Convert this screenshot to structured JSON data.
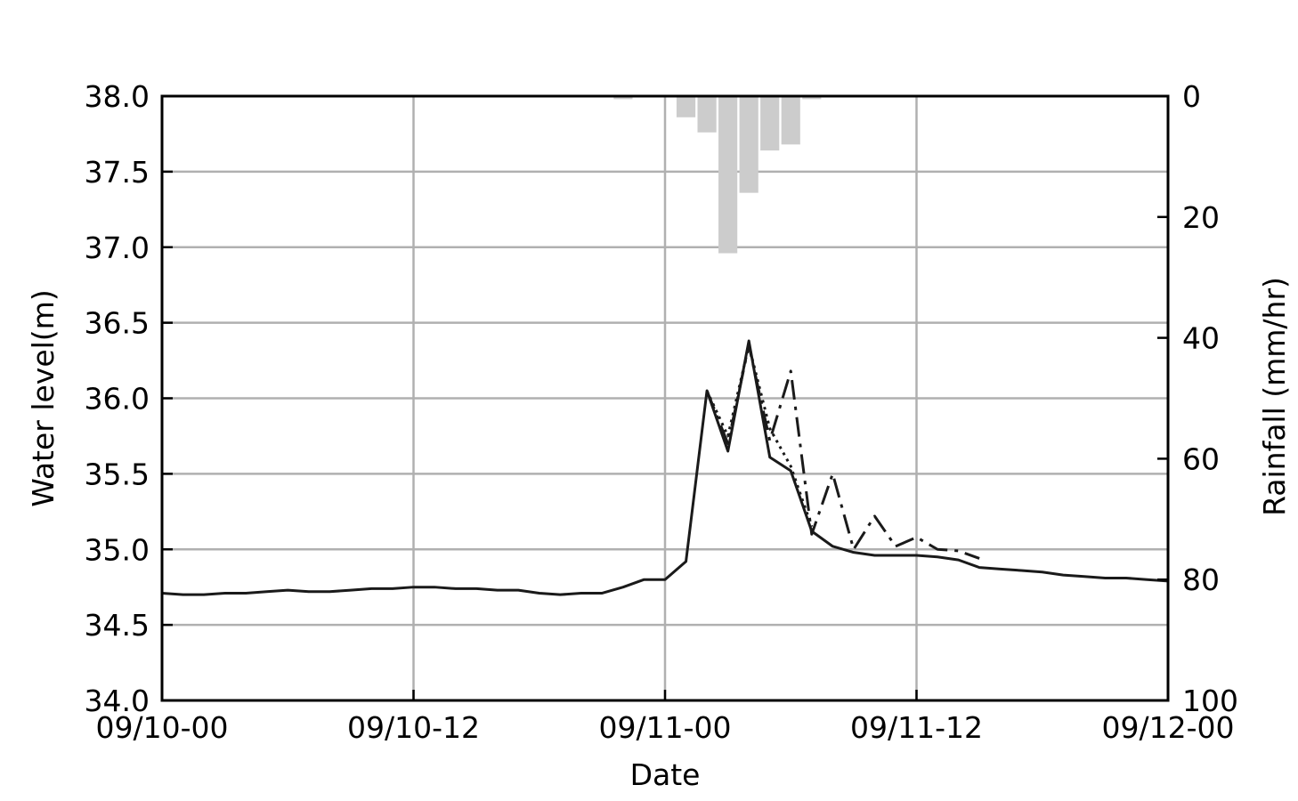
{
  "chart_data": {
    "type": "line",
    "title": "",
    "xlabel": "Date",
    "ylabel": "Water level(m)",
    "y2label": "Rainfall (mm/hr)",
    "x_unit": "hours since first tick",
    "xlim": [
      0,
      48
    ],
    "ylim": [
      34.0,
      38.0
    ],
    "y2lim": [
      0,
      100
    ],
    "y2_inverted": true,
    "grid": true,
    "x_ticks": [
      {
        "x": 0,
        "label": "09/10-00"
      },
      {
        "x": 12,
        "label": "09/10-12"
      },
      {
        "x": 24,
        "label": "09/11-00"
      },
      {
        "x": 36,
        "label": "09/11-12"
      },
      {
        "x": 48,
        "label": "09/12-00"
      }
    ],
    "y_ticks": [
      {
        "y": 34.0,
        "label": "34.0"
      },
      {
        "y": 34.5,
        "label": "34.5"
      },
      {
        "y": 35.0,
        "label": "35.0"
      },
      {
        "y": 35.5,
        "label": "35.5"
      },
      {
        "y": 36.0,
        "label": "36.0"
      },
      {
        "y": 36.5,
        "label": "36.5"
      },
      {
        "y": 37.0,
        "label": "37.0"
      },
      {
        "y": 37.5,
        "label": "37.5"
      },
      {
        "y": 38.0,
        "label": "38.0"
      }
    ],
    "y2_ticks": [
      {
        "y": 0,
        "label": "0"
      },
      {
        "y": 20,
        "label": "20"
      },
      {
        "y": 40,
        "label": "40"
      },
      {
        "y": 60,
        "label": "60"
      },
      {
        "y": 80,
        "label": "80"
      },
      {
        "y": 100,
        "label": "100"
      }
    ],
    "colors": {
      "observed": "#1a1a1a",
      "simulated": "#1a1a1a",
      "rainfall": "#cccccc",
      "grid": "#b0b0b0"
    },
    "series": [
      {
        "style": "solid",
        "x": [
          0,
          1,
          2,
          3,
          4,
          5,
          6,
          7,
          8,
          9,
          10,
          11,
          12,
          13,
          14,
          15,
          16,
          17,
          18,
          19,
          20,
          21,
          22,
          23,
          24,
          25,
          26,
          27,
          28,
          29,
          30,
          31,
          32,
          33,
          34,
          35,
          36,
          37,
          38,
          39,
          40,
          41,
          42,
          43,
          44,
          45,
          46,
          47,
          48
        ],
        "values": [
          34.71,
          34.7,
          34.7,
          34.71,
          34.71,
          34.72,
          34.73,
          34.72,
          34.72,
          34.73,
          34.74,
          34.74,
          34.75,
          34.75,
          34.74,
          34.74,
          34.73,
          34.73,
          34.71,
          34.7,
          34.71,
          34.71,
          34.75,
          34.8,
          34.8,
          34.92,
          36.05,
          35.65,
          36.38,
          35.61,
          35.52,
          35.12,
          35.02,
          34.98,
          34.96,
          34.96,
          34.96,
          34.95,
          34.93,
          34.88,
          34.87,
          34.86,
          34.85,
          34.83,
          34.82,
          34.81,
          34.81,
          34.8,
          34.79
        ]
      },
      {
        "style": "dashdot",
        "x": [
          26,
          27,
          28,
          29,
          30,
          31,
          32,
          33,
          34,
          35,
          36,
          37,
          38,
          39
        ],
        "values": [
          36.05,
          35.7,
          36.35,
          35.72,
          36.18,
          35.1,
          35.5,
          35.0,
          35.22,
          35.02,
          35.08,
          35.0,
          34.99,
          34.94
        ]
      },
      {
        "style": "dotted",
        "x": [
          26,
          27,
          28,
          29,
          30,
          31
        ],
        "values": [
          36.05,
          35.75,
          36.35,
          35.8,
          35.55,
          35.15
        ]
      }
    ],
    "rainfall": {
      "type": "bar",
      "x": [
        22,
        25,
        26,
        27,
        28,
        29,
        30,
        31
      ],
      "values": [
        0.5,
        3.5,
        6.0,
        26.0,
        16.0,
        9.0,
        8.0,
        0.5
      ]
    }
  }
}
